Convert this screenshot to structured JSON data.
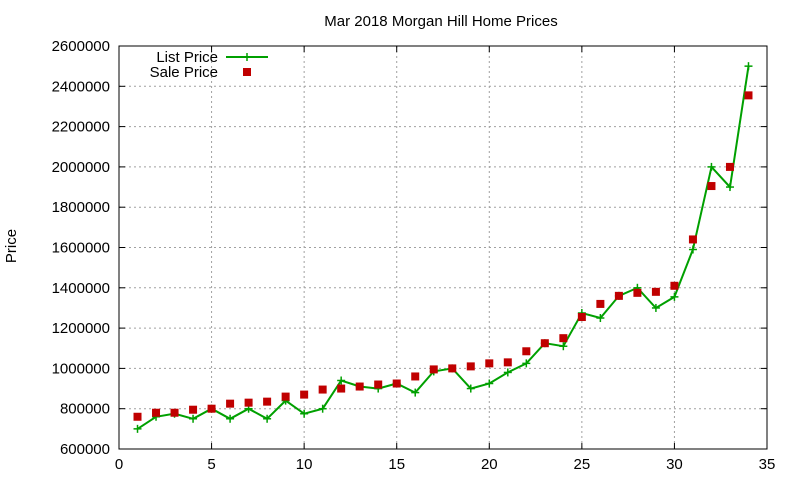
{
  "chart_data": {
    "type": "line",
    "title": "Mar 2018 Morgan Hill Home Prices",
    "xlabel": "",
    "ylabel": "Price",
    "xlim": [
      0,
      35
    ],
    "ylim": [
      600000,
      2600000
    ],
    "xticks": [
      0,
      5,
      10,
      15,
      20,
      25,
      30,
      35
    ],
    "yticks": [
      600000,
      800000,
      1000000,
      1200000,
      1400000,
      1600000,
      1800000,
      2000000,
      2200000,
      2400000,
      2600000
    ],
    "grid": true,
    "legend_position": "top-left",
    "series": [
      {
        "name": "List Price",
        "style": "line-plus",
        "color": "#00a000",
        "x": [
          1,
          2,
          3,
          4,
          5,
          6,
          7,
          8,
          9,
          10,
          11,
          12,
          13,
          14,
          15,
          16,
          17,
          18,
          19,
          20,
          21,
          22,
          23,
          24,
          25,
          26,
          27,
          28,
          29,
          30,
          31,
          32,
          33,
          34
        ],
        "y": [
          700000,
          760000,
          775000,
          750000,
          800000,
          750000,
          800000,
          750000,
          840000,
          775000,
          800000,
          940000,
          910000,
          900000,
          925000,
          880000,
          985000,
          1000000,
          900000,
          925000,
          980000,
          1025000,
          1125000,
          1110000,
          1275000,
          1250000,
          1360000,
          1400000,
          1300000,
          1355000,
          1590000,
          2000000,
          1900000,
          2500000
        ]
      },
      {
        "name": "Sale Price",
        "style": "square",
        "color": "#c00000",
        "x": [
          1,
          2,
          3,
          4,
          5,
          6,
          7,
          8,
          9,
          10,
          11,
          12,
          13,
          14,
          15,
          16,
          17,
          18,
          19,
          20,
          21,
          22,
          23,
          24,
          25,
          26,
          27,
          28,
          29,
          30,
          31,
          32,
          33,
          34
        ],
        "y": [
          760000,
          780000,
          780000,
          795000,
          800000,
          825000,
          830000,
          835000,
          860000,
          870000,
          895000,
          900000,
          910000,
          920000,
          925000,
          960000,
          995000,
          1000000,
          1010000,
          1025000,
          1030000,
          1085000,
          1125000,
          1150000,
          1255000,
          1320000,
          1360000,
          1375000,
          1380000,
          1410000,
          1640000,
          1905000,
          2000000,
          2355000
        ]
      }
    ]
  }
}
